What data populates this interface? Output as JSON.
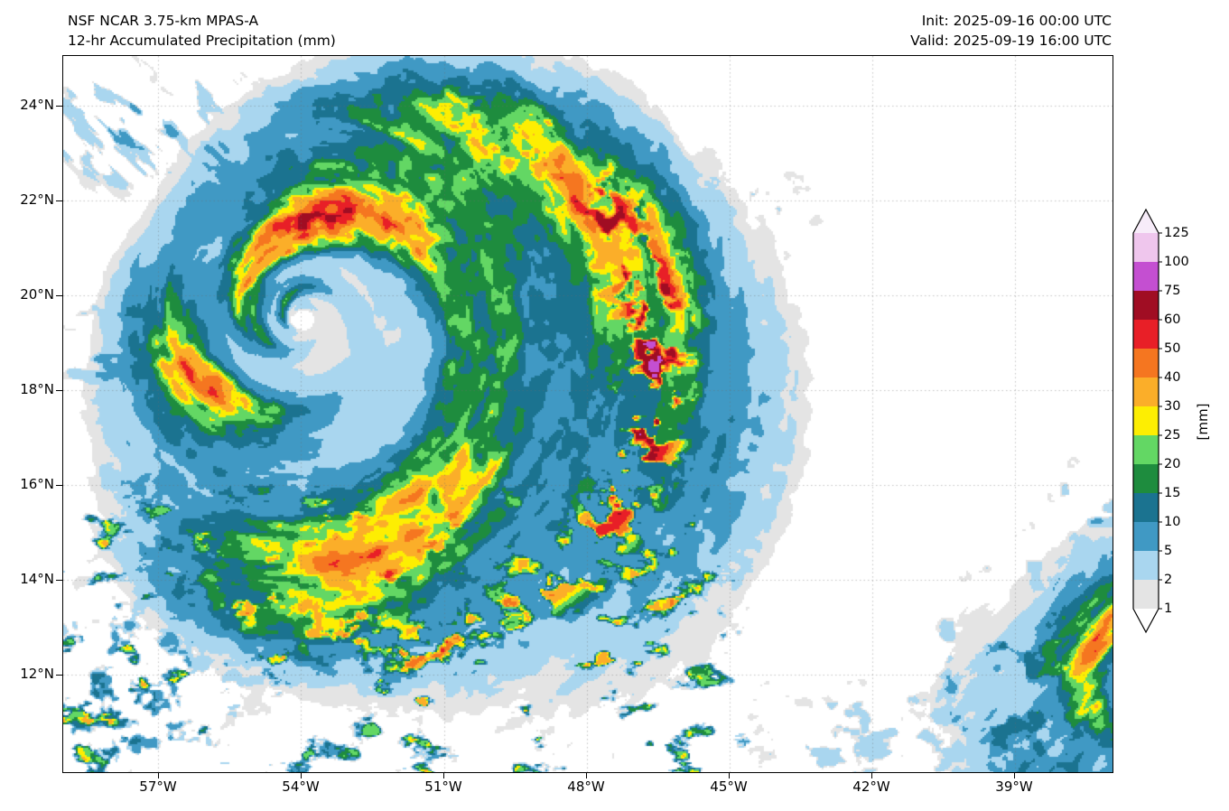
{
  "header": {
    "model_line": "NSF NCAR 3.75-km MPAS-A",
    "product_line": "12-hr Accumulated Precipitation (mm)",
    "init_line": "Init: 2025-09-16 00:00 UTC",
    "valid_line": "Valid: 2025-09-19 16:00 UTC"
  },
  "chart_data": {
    "type": "heatmap",
    "title": "12-hr Accumulated Precipitation (mm)",
    "model": "NSF NCAR 3.75-km MPAS-A",
    "init_time": "2025-09-16 00:00 UTC",
    "valid_time": "2025-09-19 16:00 UTC",
    "units": "mm",
    "colorbar_unit": "[mm]",
    "grid": true,
    "x_tick_labels": [
      "57°W",
      "54°W",
      "51°W",
      "48°W",
      "45°W",
      "42°W",
      "39°W"
    ],
    "y_tick_labels": [
      "24°N",
      "22°N",
      "20°N",
      "18°N",
      "16°N",
      "14°N",
      "12°N"
    ],
    "x_tick_lons_deg_east": [
      -57,
      -54,
      -51,
      -48,
      -45,
      -42,
      -39
    ],
    "y_tick_lats_deg_north": [
      24,
      22,
      20,
      18,
      16,
      14,
      12
    ],
    "lon_range_deg_east": [
      -59.0,
      -36.95
    ],
    "lat_range_deg_north": [
      9.94,
      25.05
    ],
    "levels_mm": [
      1,
      2,
      5,
      10,
      15,
      20,
      25,
      30,
      40,
      50,
      60,
      75,
      100,
      125
    ],
    "band_colors": [
      "#e4e4e4",
      "#a9d6ef",
      "#4099c4",
      "#1b7390",
      "#1e8c3e",
      "#63d764",
      "#fdee02",
      "#fbae29",
      "#f57620",
      "#e81f27",
      "#a00d23",
      "#c44fd1",
      "#efc6ed"
    ],
    "under_color": "#ffffff",
    "over_color": "#f7ecf9",
    "features": {
      "tropical_cyclone": {
        "description": "Large comma-shaped tropical cyclone centered near 54W 19.5N; tight spiral rainbands, heaviest rain (50-125 mm) in the north-through-east bands and along the outer east-to-south rainband arcing to 46W",
        "center_lon": -54.0,
        "center_lat": 19.5,
        "edge_radius_base_deg": 3.6,
        "edge_radius_bulge_deg": 5.2,
        "bulge_dir_rad": -0.55,
        "bulge_width_rad": 1.9,
        "arms": 2,
        "pitch": 2.9,
        "peak_mm": 120
      },
      "southern_scattered_convection": {
        "description": "Scattered convective cells (2-30 mm) south of the cyclone, roughly 10-16N and 59-45W",
        "lat_north_edge": 16.6,
        "lat_full": 14.9,
        "lon_east_edge": -43.8,
        "lon_full": -46.3,
        "typical_mm": 10
      },
      "southeast_system": {
        "description": "Edge of a second banded rain area in the far southeast corner near 36.5W 11.5N, 5-55 mm",
        "center_lon": -36.2,
        "center_lat": 11.5,
        "peak_mm": 55
      },
      "scatter_patches": [
        {
          "name": "northwest-streaks",
          "lon": -57.4,
          "lat": 23.7,
          "rx": 1.8,
          "ry": 1.4,
          "ax": 0.9,
          "ay": -0.9,
          "bx": 2.8,
          "by": 2.8,
          "seed": 81,
          "amp": 6,
          "t0": 0.54,
          "t1": 0.7
        },
        {
          "name": "north-faint-dots",
          "lon": -44.2,
          "lat": 21.9,
          "rx": 1.6,
          "ry": 0.8,
          "ax": 2.4,
          "ay": 0.3,
          "bx": -0.3,
          "by": 2.6,
          "seed": 87,
          "amp": 2.4,
          "t0": 0.58,
          "t1": 0.72
        },
        {
          "name": "southwest-corner-cells",
          "lon": -58.0,
          "lat": 11.3,
          "rx": 1.9,
          "ry": 1.8,
          "ax": 2.1,
          "ay": 0.8,
          "bx": -0.8,
          "by": 2.3,
          "seed": 91,
          "amp": 13,
          "t0": 0.58,
          "t1": 0.74
        },
        {
          "name": "south-faint-patches",
          "lon": -42.3,
          "lat": 10.5,
          "rx": 2.2,
          "ry": 1.2,
          "ax": 1.7,
          "ay": 0.6,
          "bx": -0.5,
          "by": 2.4,
          "seed": 95,
          "amp": 4,
          "t0": 0.56,
          "t1": 0.72
        },
        {
          "name": "southeast-outer-cells",
          "lon": -38.7,
          "lat": 11.8,
          "rx": 1.7,
          "ry": 2.0,
          "ax": 2.0,
          "ay": 1.0,
          "bx": -1.0,
          "by": 2.2,
          "seed": 99,
          "amp": 10,
          "t0": 0.57,
          "t1": 0.73
        },
        {
          "name": "east-edge-specks",
          "lon": -37.3,
          "lat": 15.6,
          "rx": 0.8,
          "ry": 0.9,
          "ax": 2.2,
          "ay": 0.0,
          "bx": 0.0,
          "by": 2.5,
          "seed": 103,
          "amp": 5,
          "t0": 0.6,
          "t1": 0.75
        },
        {
          "name": "west-edge-dashes",
          "lon": -58.2,
          "lat": 18.9,
          "rx": 1.0,
          "ry": 0.9,
          "ax": 1.0,
          "ay": 0.0,
          "bx": 0.0,
          "by": 3.0,
          "seed": 107,
          "amp": 5,
          "t0": 0.58,
          "t1": 0.72
        }
      ]
    }
  }
}
